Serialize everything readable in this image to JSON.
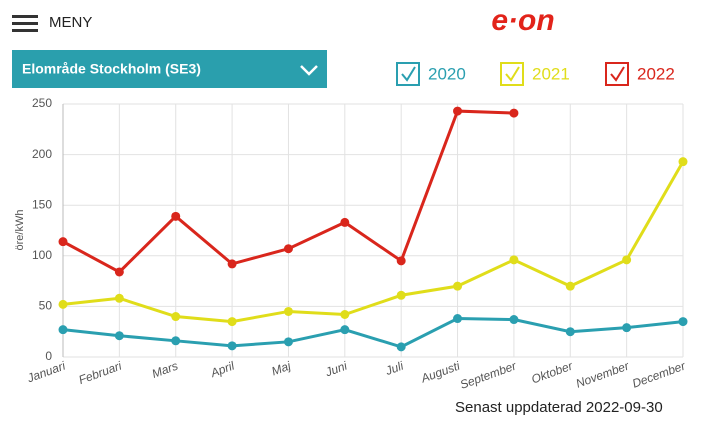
{
  "header": {
    "menu": "MENY",
    "logo": "e·on"
  },
  "selector": {
    "label": "Elområde Stockholm (SE3)"
  },
  "chart_data": {
    "type": "line",
    "y_label": "öre/kWh",
    "categories": [
      "Januari",
      "Februari",
      "Mars",
      "April",
      "Maj",
      "Juni",
      "Juli",
      "Augusti",
      "September",
      "Oktober",
      "November",
      "December"
    ],
    "series": [
      {
        "name": "2020",
        "color": "#2a9fb0",
        "values": [
          27,
          21,
          16,
          11,
          15,
          27,
          10,
          38,
          37,
          25,
          29,
          35
        ]
      },
      {
        "name": "2021",
        "color": "#e0dd1a",
        "values": [
          52,
          58,
          40,
          35,
          45,
          42,
          61,
          70,
          96,
          70,
          96,
          193
        ]
      },
      {
        "name": "2022",
        "color": "#d9261c",
        "values": [
          114,
          84,
          139,
          92,
          107,
          133,
          95,
          243,
          241,
          null,
          null,
          null
        ]
      }
    ],
    "ylim": [
      0,
      250
    ],
    "yticks": [
      0,
      50,
      100,
      150,
      200,
      250
    ],
    "grid": true
  },
  "footer": {
    "updated": "Senast uppdaterad 2022-09-30"
  }
}
